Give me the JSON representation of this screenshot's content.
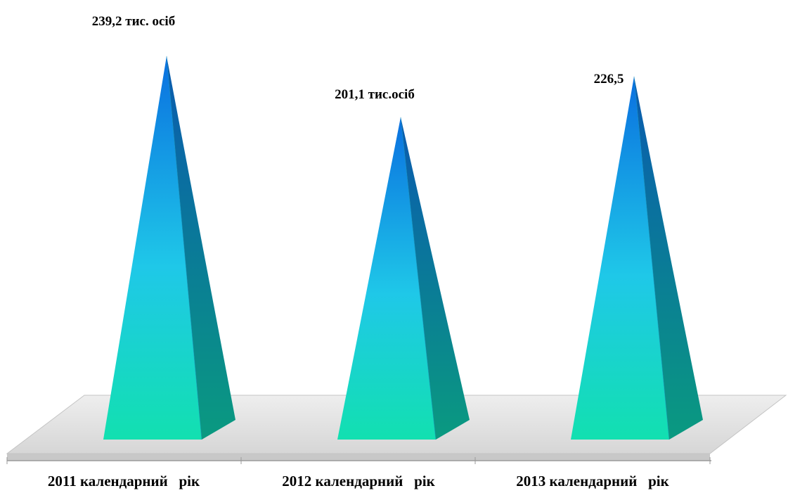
{
  "chart_data": {
    "type": "bar",
    "bar_shape": "pyramid-3d",
    "categories": [
      "2011 календарний   рік",
      "2012 календарний   рік",
      "2013 календарний   рік"
    ],
    "values": [
      239.2,
      201.1,
      226.5
    ],
    "data_labels": [
      "239,2 тис.  осіб",
      "201,1 тис.осіб",
      "226,5"
    ],
    "unit": "тис. осіб",
    "title": "",
    "xlabel": "",
    "ylabel": "",
    "ylim": [
      0,
      240
    ],
    "grid": false,
    "legend": "none",
    "colors": {
      "pyramid_top": "#0a6fe0",
      "pyramid_mid": "#1fc8e8",
      "pyramid_bottom": "#12e0b0",
      "pyramid_side_top": "#0a5ab0",
      "pyramid_side_bottom": "#0a9a80",
      "floor": "#e2e2e2",
      "floor_edge": "#bcbcbc",
      "axis": "#9a9a9a"
    }
  }
}
